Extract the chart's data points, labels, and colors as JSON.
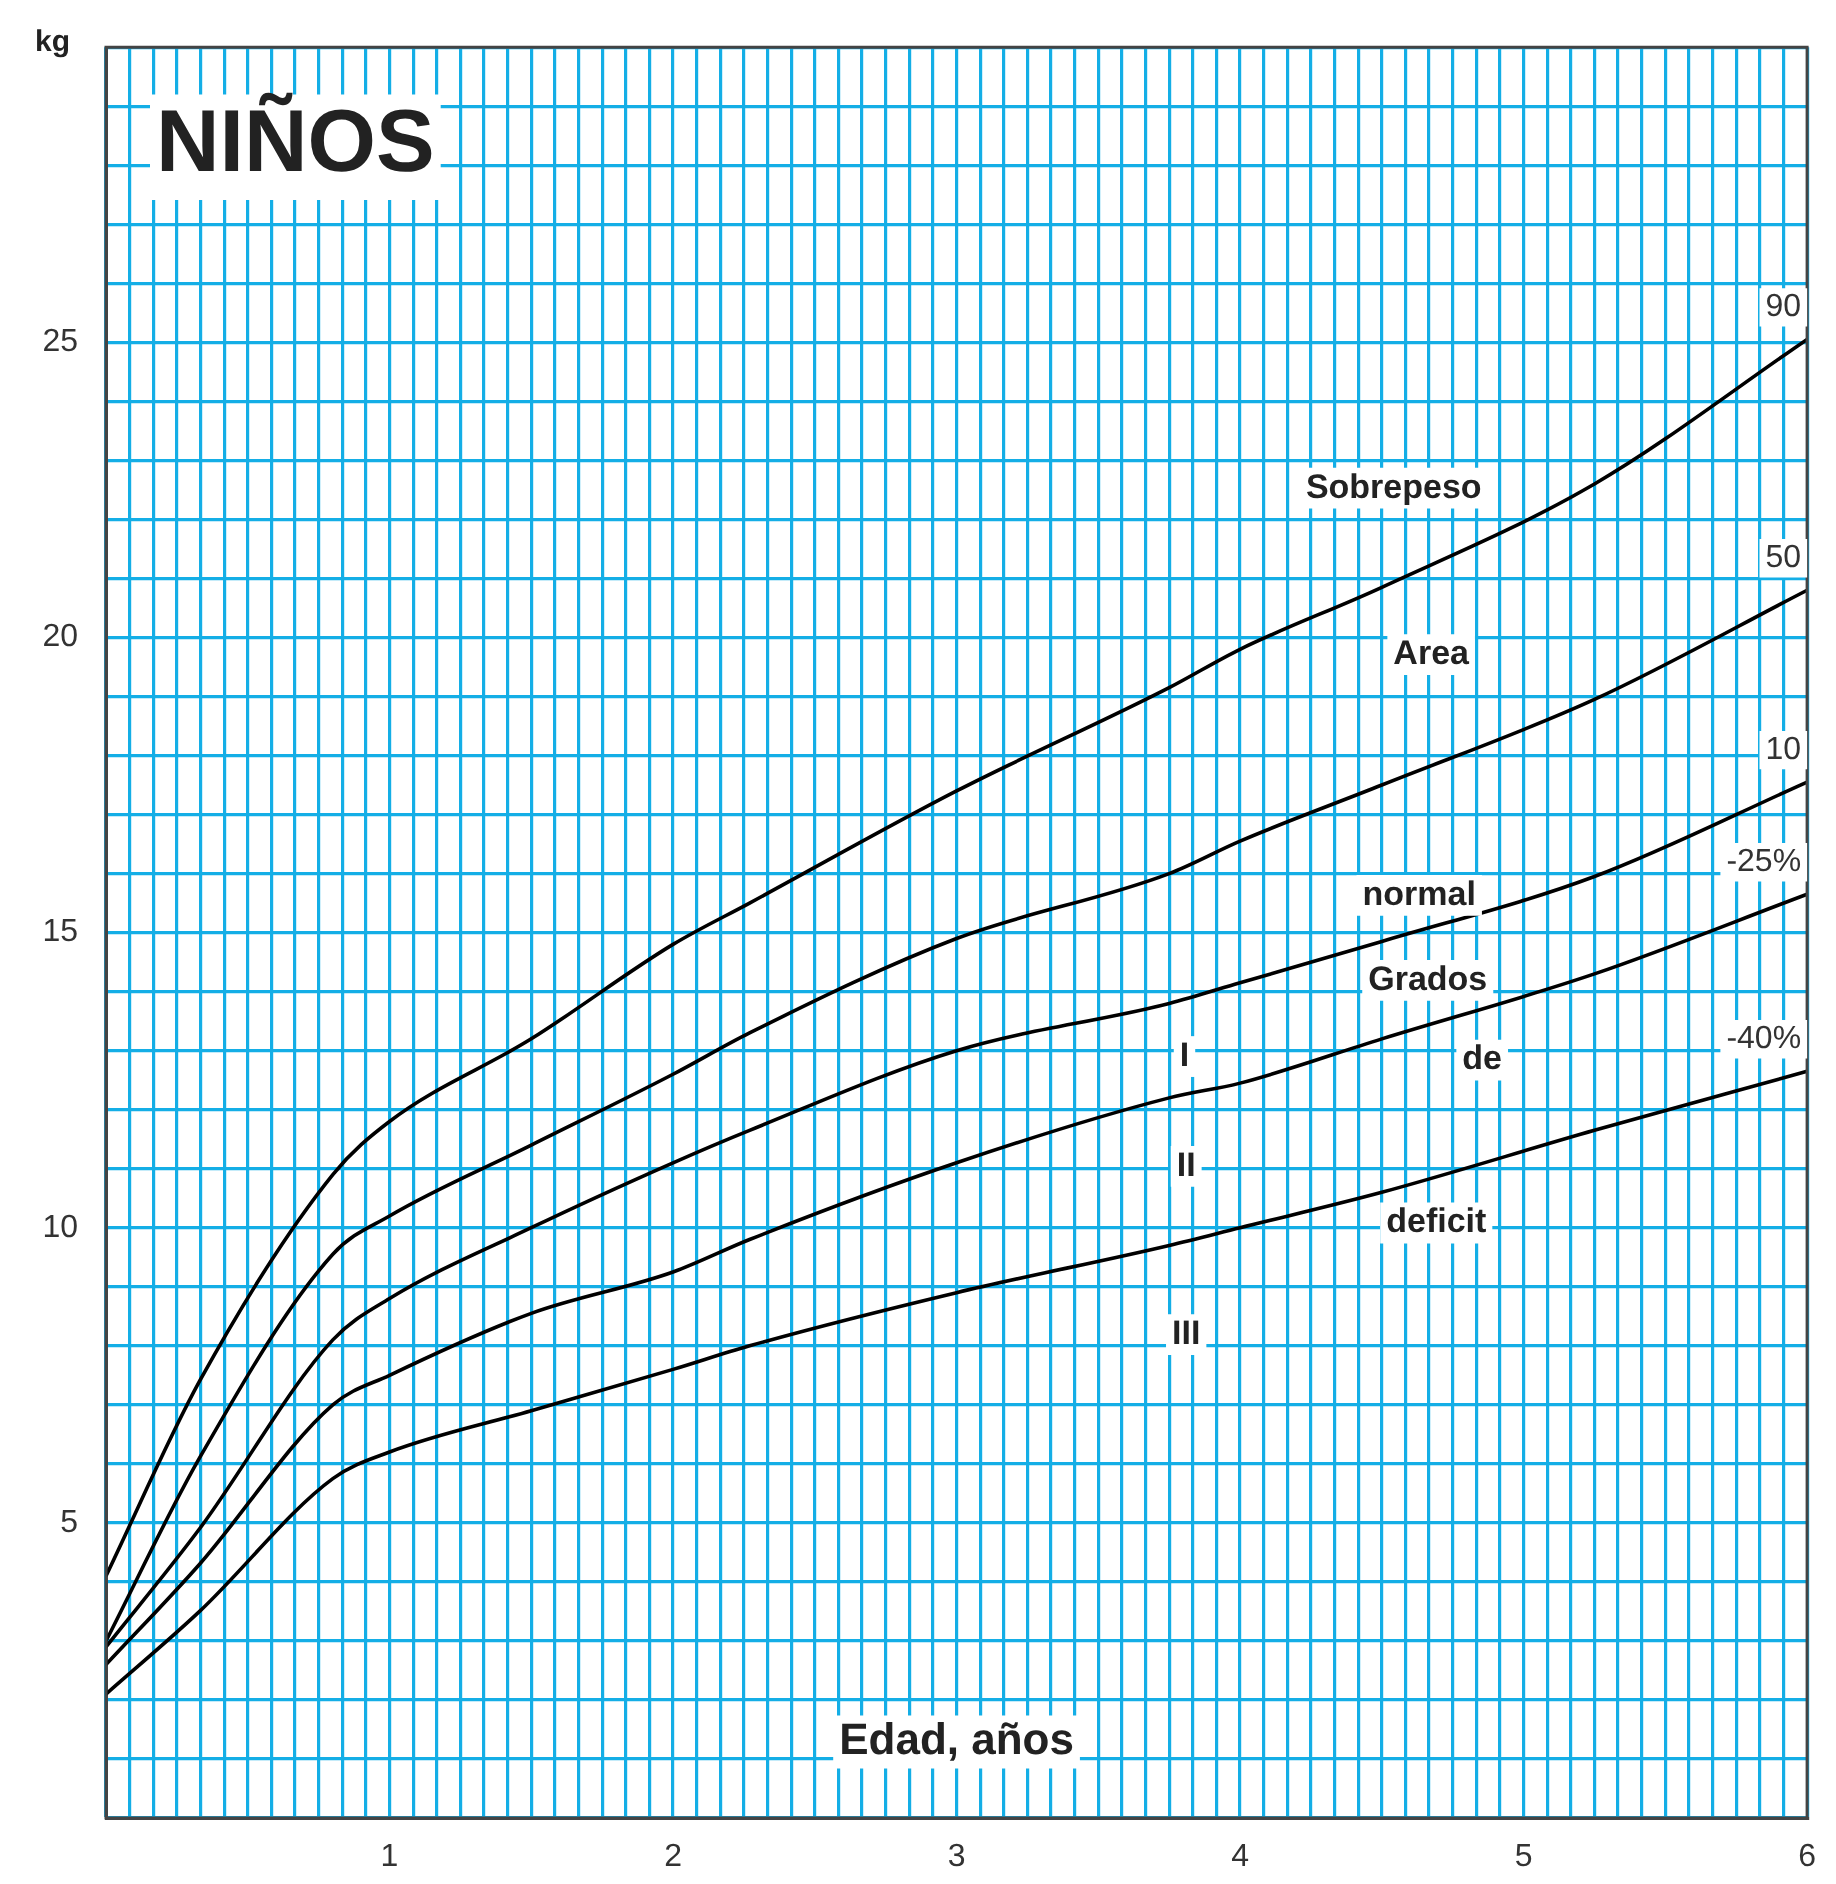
{
  "chart_data": {
    "type": "line",
    "title": "NIÑOS",
    "xlabel": "Edad, años",
    "ylabel": "kg",
    "x": [
      0,
      0.33,
      0.8,
      1,
      1.5,
      2,
      2.27,
      3,
      3.75,
      4,
      4.5,
      5.25,
      6
    ],
    "series": [
      {
        "name": "90",
        "color": "#000000",
        "values": [
          4.1,
          7.4,
          10.9,
          11.8,
          13.2,
          14.8,
          15.5,
          17.4,
          19.15,
          19.8,
          20.85,
          22.6,
          25.05
        ]
      },
      {
        "name": "50",
        "color": "#000000",
        "values": [
          3.0,
          6.1,
          9.55,
          10.2,
          11.4,
          12.6,
          13.3,
          14.9,
          16.0,
          16.55,
          17.5,
          18.95,
          20.8
        ]
      },
      {
        "name": "10",
        "color": "#000000",
        "values": [
          2.9,
          4.9,
          8.1,
          8.8,
          10.0,
          11.1,
          11.65,
          13.0,
          13.8,
          14.15,
          14.85,
          15.95,
          17.55
        ]
      },
      {
        "name": "-25%",
        "color": "#000000",
        "values": [
          2.6,
          4.3,
          7.0,
          7.5,
          8.55,
          9.25,
          9.8,
          11.1,
          12.2,
          12.45,
          13.2,
          14.3,
          15.65
        ]
      },
      {
        "name": "-40%",
        "color": "#000000",
        "values": [
          2.1,
          3.5,
          5.75,
          6.2,
          6.9,
          7.6,
          8.0,
          8.9,
          9.7,
          10.0,
          10.6,
          11.65,
          12.65
        ]
      }
    ],
    "xlim": [
      0,
      6
    ],
    "ylim": [
      0,
      30
    ],
    "xticks": [
      {
        "value": 0,
        "label": null
      },
      {
        "value": 0.0833,
        "label": null
      },
      {
        "value": 0.1667,
        "label": null
      },
      {
        "value": 0.25,
        "label": null
      },
      {
        "value": 0.3333,
        "label": null
      },
      {
        "value": 0.4167,
        "label": null
      },
      {
        "value": 0.5,
        "label": null
      },
      {
        "value": 0.5833,
        "label": null
      },
      {
        "value": 0.6667,
        "label": null
      },
      {
        "value": 0.75,
        "label": null
      },
      {
        "value": 0.8333,
        "label": null
      },
      {
        "value": 0.9167,
        "label": null
      },
      1,
      {
        "value": 1.0833,
        "label": null
      },
      {
        "value": 1.1667,
        "label": null
      },
      {
        "value": 1.25,
        "label": null
      },
      {
        "value": 1.3333,
        "label": null
      },
      {
        "value": 1.4167,
        "label": null
      },
      {
        "value": 1.5,
        "label": null
      },
      {
        "value": 1.5833,
        "label": null
      },
      {
        "value": 1.6667,
        "label": null
      },
      {
        "value": 1.75,
        "label": null
      },
      {
        "value": 1.8333,
        "label": null
      },
      {
        "value": 1.9167,
        "label": null
      },
      2,
      {
        "value": 2.0833,
        "label": null
      },
      {
        "value": 2.1667,
        "label": null
      },
      {
        "value": 2.25,
        "label": null
      },
      {
        "value": 2.3333,
        "label": null
      },
      {
        "value": 2.4167,
        "label": null
      },
      {
        "value": 2.5,
        "label": null
      },
      {
        "value": 2.5833,
        "label": null
      },
      {
        "value": 2.6667,
        "label": null
      },
      {
        "value": 2.75,
        "label": null
      },
      {
        "value": 2.8333,
        "label": null
      },
      {
        "value": 2.9167,
        "label": null
      },
      3,
      {
        "value": 3.0833,
        "label": null
      },
      {
        "value": 3.1667,
        "label": null
      },
      {
        "value": 3.25,
        "label": null
      },
      {
        "value": 3.3333,
        "label": null
      },
      {
        "value": 3.4167,
        "label": null
      },
      {
        "value": 3.5,
        "label": null
      },
      {
        "value": 3.5833,
        "label": null
      },
      {
        "value": 3.6667,
        "label": null
      },
      {
        "value": 3.75,
        "label": null
      },
      {
        "value": 3.8333,
        "label": null
      },
      {
        "value": 3.9167,
        "label": null
      },
      4,
      {
        "value": 4.0833,
        "label": null
      },
      {
        "value": 4.1667,
        "label": null
      },
      {
        "value": 4.25,
        "label": null
      },
      {
        "value": 4.3333,
        "label": null
      },
      {
        "value": 4.4167,
        "label": null
      },
      {
        "value": 4.5,
        "label": null
      },
      {
        "value": 4.5833,
        "label": null
      },
      {
        "value": 4.6667,
        "label": null
      },
      {
        "value": 4.75,
        "label": null
      },
      {
        "value": 4.8333,
        "label": null
      },
      {
        "value": 4.9167,
        "label": null
      },
      5,
      {
        "value": 5.0833,
        "label": null
      },
      {
        "value": 5.1667,
        "label": null
      },
      {
        "value": 5.25,
        "label": null
      },
      {
        "value": 5.3333,
        "label": null
      },
      {
        "value": 5.4167,
        "label": null
      },
      {
        "value": 5.5,
        "label": null
      },
      {
        "value": 5.5833,
        "label": null
      },
      {
        "value": 5.6667,
        "label": null
      },
      {
        "value": 5.75,
        "label": null
      },
      {
        "value": 5.8333,
        "label": null
      },
      {
        "value": 5.9167,
        "label": null
      },
      6
    ],
    "yticks": [
      {
        "value": 0,
        "label": null
      },
      {
        "value": 1,
        "label": null
      },
      {
        "value": 2,
        "label": null
      },
      {
        "value": 3,
        "label": null
      },
      {
        "value": 4,
        "label": null
      },
      5,
      {
        "value": 6,
        "label": null
      },
      {
        "value": 7,
        "label": null
      },
      {
        "value": 8,
        "label": null
      },
      {
        "value": 9,
        "label": null
      },
      10,
      {
        "value": 11,
        "label": null
      },
      {
        "value": 12,
        "label": null
      },
      {
        "value": 13,
        "label": null
      },
      {
        "value": 14,
        "label": null
      },
      15,
      {
        "value": 16,
        "label": null
      },
      {
        "value": 17,
        "label": null
      },
      {
        "value": 18,
        "label": null
      },
      {
        "value": 19,
        "label": null
      },
      20,
      {
        "value": 21,
        "label": null
      },
      {
        "value": 22,
        "label": null
      },
      {
        "value": 23,
        "label": null
      },
      {
        "value": 24,
        "label": null
      },
      25,
      {
        "value": 26,
        "label": null
      },
      {
        "value": 27,
        "label": null
      },
      {
        "value": 28,
        "label": null
      },
      {
        "value": 29,
        "label": null
      },
      {
        "value": 30,
        "label": null
      }
    ],
    "grid": true,
    "annotations": [
      "Sobrepeso",
      "Area",
      "normal",
      "Grados",
      "de",
      "deficit",
      "I",
      "II",
      "III"
    ]
  }
}
